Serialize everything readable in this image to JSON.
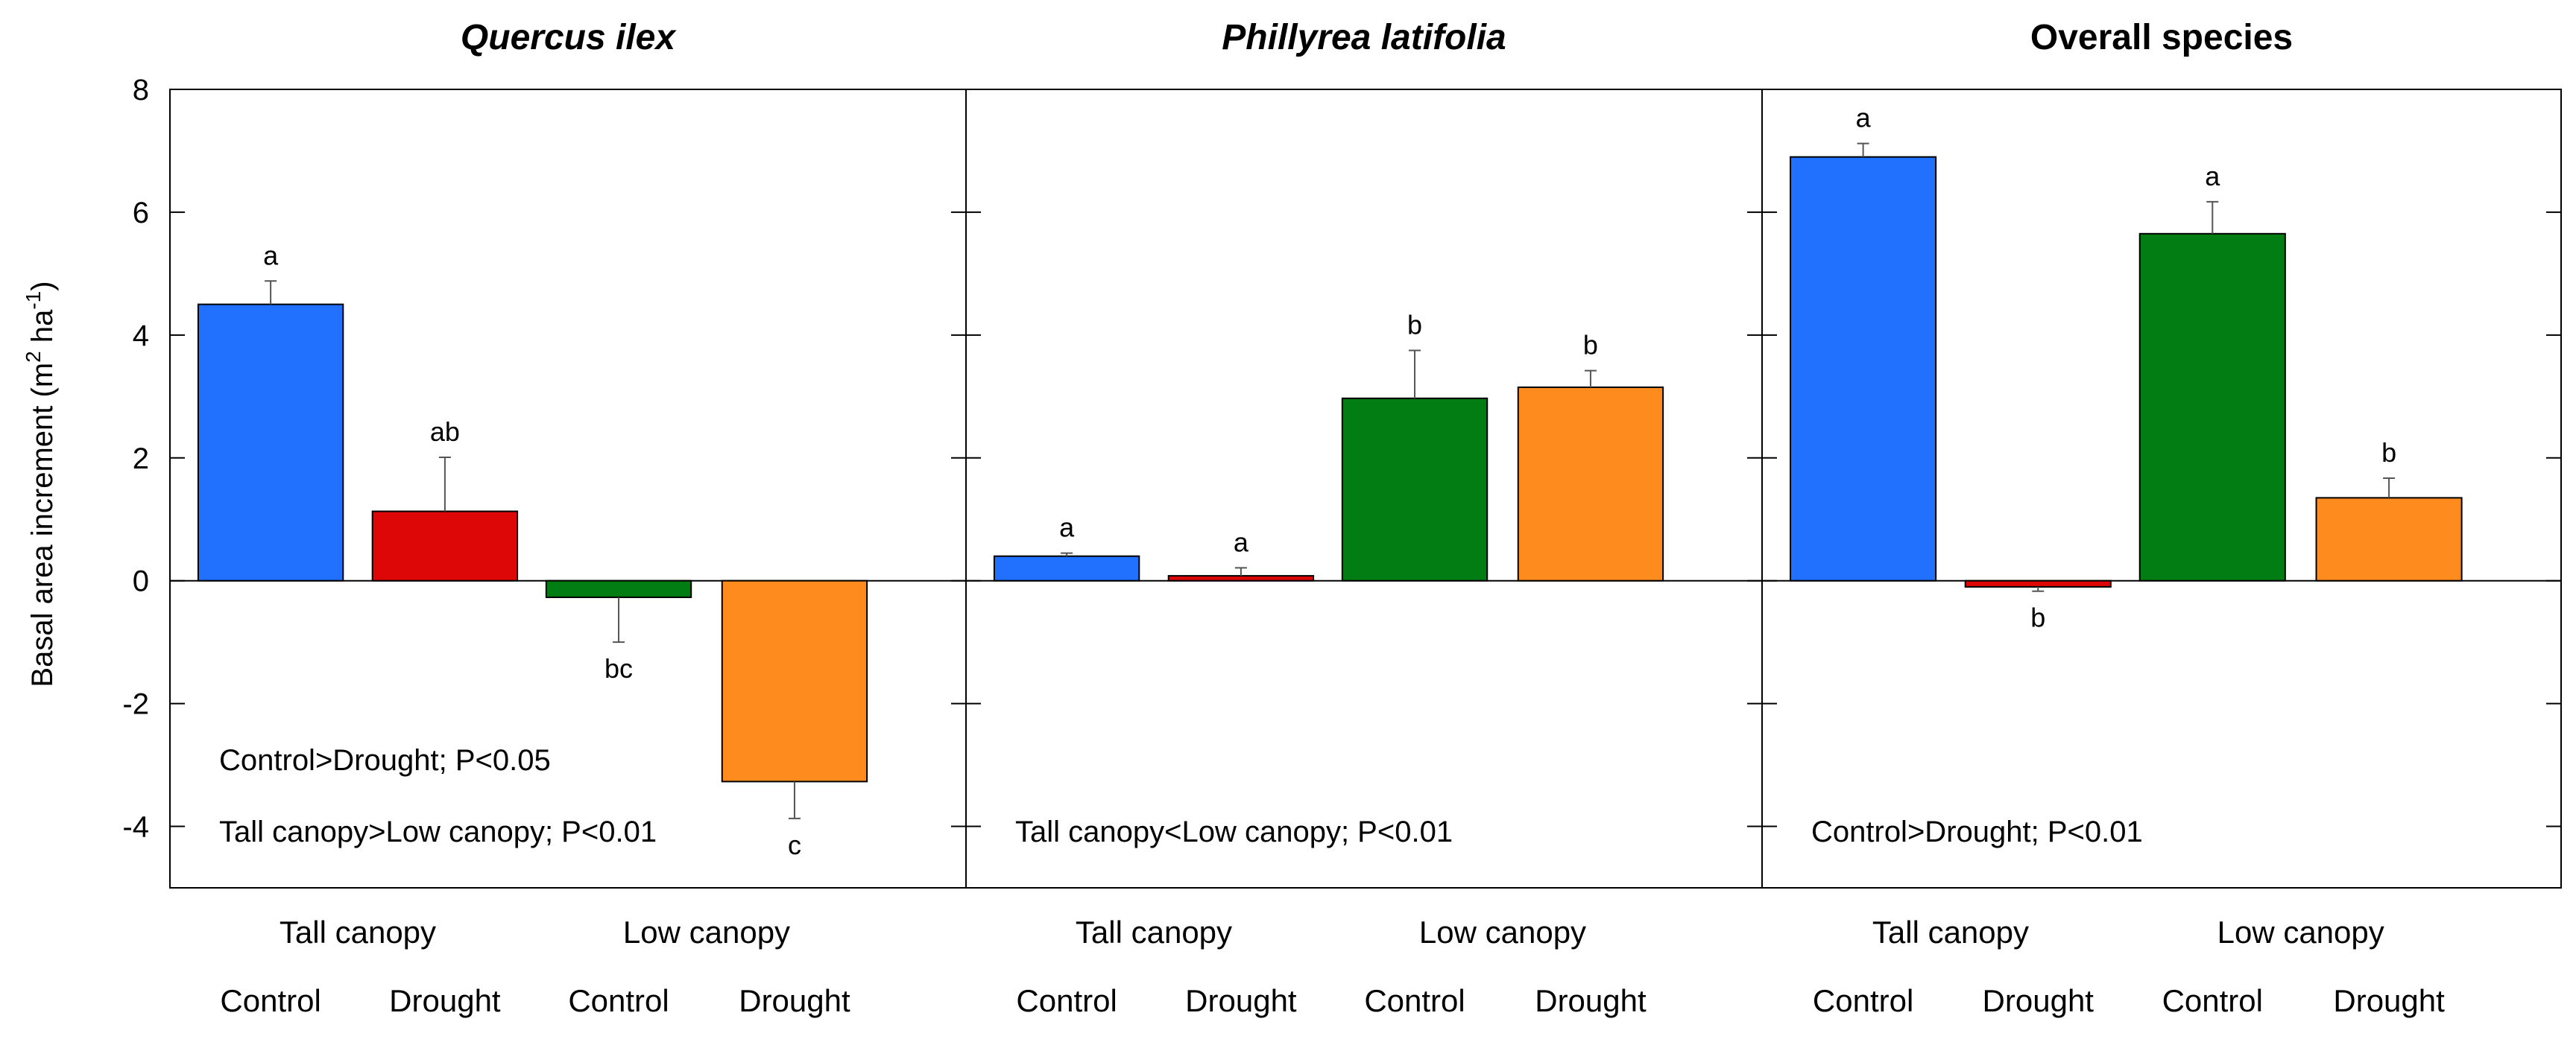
{
  "chart_data": {
    "type": "bar",
    "ylabel": "Basal area increment (m² ha⁻¹)",
    "ylim": [
      -5,
      8
    ],
    "yticks": [
      -4,
      -2,
      0,
      2,
      4,
      6,
      8
    ],
    "group_labels": [
      "Tall canopy",
      "Low canopy"
    ],
    "treatment_labels": [
      "Control",
      "Drought",
      "Control",
      "Drought"
    ],
    "colors": [
      "#2171fe",
      "#de0707",
      "#027d14",
      "#fd8b1d"
    ],
    "panels": [
      {
        "title": "Quercus ilex",
        "italic": true,
        "values": [
          4.5,
          1.13,
          -0.27,
          -3.27
        ],
        "errors": [
          0.38,
          0.88,
          0.73,
          0.6
        ],
        "letters": [
          "a",
          "ab",
          "bc",
          "c"
        ],
        "annotations": [
          "Control>Drought; P<0.05",
          "Tall canopy>Low canopy; P<0.01"
        ]
      },
      {
        "title": "Phillyrea latifolia",
        "italic": true,
        "values": [
          0.4,
          0.08,
          2.97,
          3.15
        ],
        "errors": [
          0.05,
          0.13,
          0.78,
          0.27
        ],
        "letters": [
          "a",
          "a",
          "b",
          "b"
        ],
        "annotations": [
          "Tall canopy<Low canopy; P<0.01"
        ]
      },
      {
        "title": "Overall species",
        "italic": false,
        "values": [
          6.9,
          -0.1,
          5.65,
          1.35
        ],
        "errors": [
          0.22,
          0.07,
          0.52,
          0.32
        ],
        "letters": [
          "a",
          "b",
          "a",
          "b"
        ],
        "annotations": [
          "Control>Drought; P<0.01"
        ]
      }
    ]
  }
}
